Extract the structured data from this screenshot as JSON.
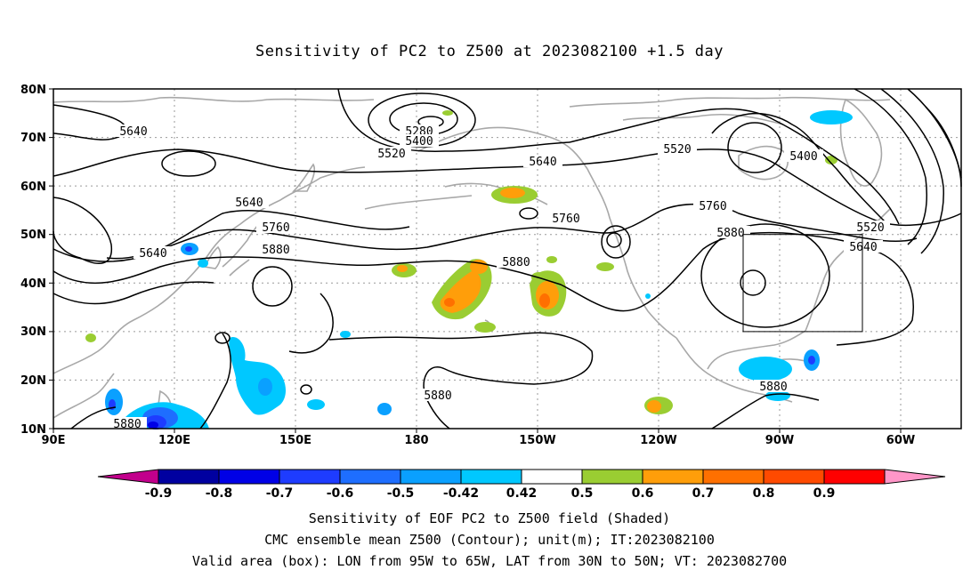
{
  "title": "Sensitivity of PC2 to Z500 at 2023082100 +1.5 day",
  "lat_labels": [
    "80N",
    "70N",
    "60N",
    "50N",
    "40N",
    "30N",
    "20N",
    "10N"
  ],
  "lon_labels": [
    "90E",
    "120E",
    "150E",
    "180",
    "150W",
    "120W",
    "90W",
    "60W"
  ],
  "contours": [
    {
      "label": "5640",
      "level": 5640
    },
    {
      "label": "5520",
      "level": 5520
    },
    {
      "label": "5400",
      "level": 5400
    },
    {
      "label": "5280",
      "level": 5280
    },
    {
      "label": "5760",
      "level": 5760
    },
    {
      "label": "5880",
      "level": 5880
    }
  ],
  "colorbar": {
    "labels": [
      "-0.9",
      "-0.8",
      "-0.7",
      "-0.6",
      "-0.5",
      "-0.42",
      "0.42",
      "0.5",
      "0.6",
      "0.7",
      "0.8",
      "0.9"
    ],
    "colors": [
      "#c2008c",
      "#0000a0",
      "#0000e6",
      "#1e3cff",
      "#1e6eff",
      "#0aa0ff",
      "#00c8ff",
      "#ffffff",
      "#9acd32",
      "#ff9e0a",
      "#ff7000",
      "#ff4a00",
      "#ff0000",
      "#ff96c8"
    ]
  },
  "box": {
    "lon_from": "95W",
    "lon_to": "65W",
    "lat_from": "30N",
    "lat_to": "50N"
  },
  "captions": [
    "Sensitivity of EOF PC2 to Z500 field (Shaded)",
    "CMC ensemble mean Z500 (Contour); unit(m); IT:2023082100",
    "Valid area (box): LON from 95W to 65W, LAT from 30N to 50N; VT: 2023082700"
  ]
}
